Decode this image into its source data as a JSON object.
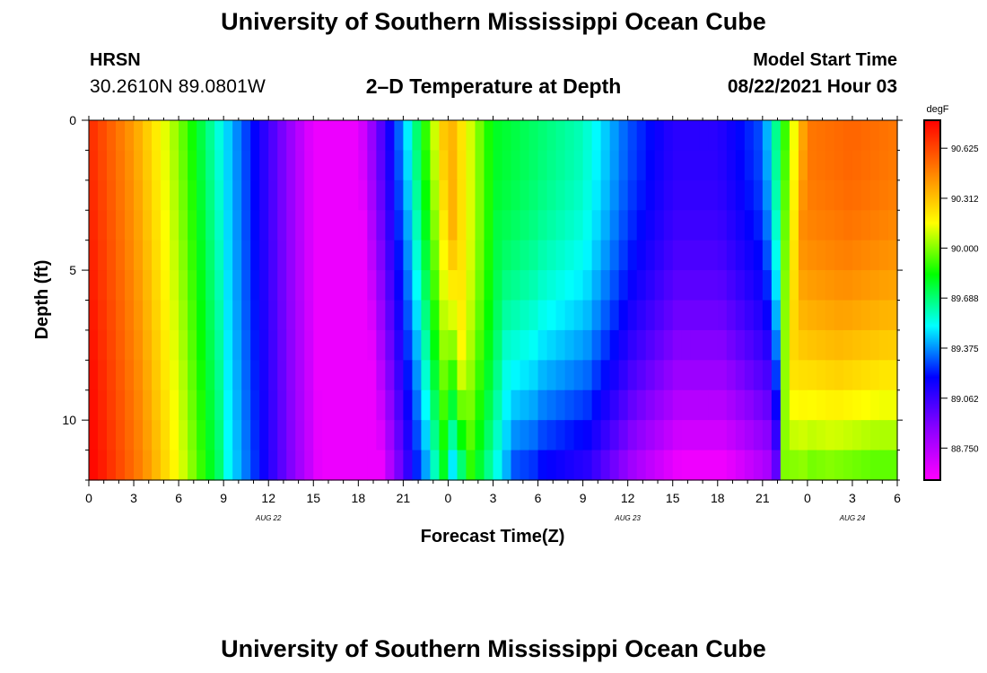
{
  "header": {
    "title": "University of Southern Mississippi Ocean Cube",
    "station": "HRSN",
    "coordinates": "30.2610N  89.0801W",
    "chart_title": "2–D Temperature at Depth",
    "model_start_label": "Model Start Time",
    "model_start_value": "08/22/2021 Hour 03"
  },
  "footer": {
    "title": "University of Southern Mississippi Ocean Cube"
  },
  "colors": {
    "colormap": [
      "#ff00ff",
      "#8b00ff",
      "#0000ff",
      "#00ffff",
      "#00ff00",
      "#ffff00",
      "#ff8000",
      "#ff0000"
    ],
    "frame": "#000000",
    "background": "#ffffff"
  },
  "chart_data": {
    "type": "heatmap",
    "title": "2–D Temperature at Depth",
    "xlabel": "Forecast Time(Z)",
    "ylabel": "Depth (ft)",
    "x_ticks": [
      "0",
      "3",
      "6",
      "9",
      "12",
      "15",
      "18",
      "21",
      "0",
      "3",
      "6",
      "9",
      "12",
      "15",
      "18",
      "21",
      "0",
      "3",
      "6"
    ],
    "x_range_hours": [
      0,
      54
    ],
    "date_labels": [
      {
        "label": "AUG  22",
        "hour": 12
      },
      {
        "label": "AUG  23",
        "hour": 36
      },
      {
        "label": "AUG  24",
        "hour": 51
      }
    ],
    "y_ticks": [
      "0",
      "5",
      "10"
    ],
    "y_range_ft": [
      0,
      12
    ],
    "colorbar": {
      "unit": "degF",
      "labels": [
        "90.625",
        "90.312",
        "90.000",
        "89.688",
        "89.375",
        "89.062",
        "88.750"
      ],
      "range": [
        88.55,
        90.8
      ]
    },
    "hours": [
      0,
      3,
      6,
      9,
      12,
      15,
      18,
      21,
      24,
      27,
      30,
      33,
      36,
      39,
      42,
      45,
      48,
      51,
      54
    ],
    "surface_temps": [
      90.7,
      90.4,
      90.0,
      89.5,
      89.05,
      88.6,
      88.6,
      89.4,
      90.4,
      89.8,
      89.7,
      89.6,
      89.3,
      89.1,
      89.1,
      89.3,
      90.5,
      90.55,
      90.5
    ],
    "transition_depth_pattern": "front shifts later with depth; bottom waters cooler after day 2"
  }
}
